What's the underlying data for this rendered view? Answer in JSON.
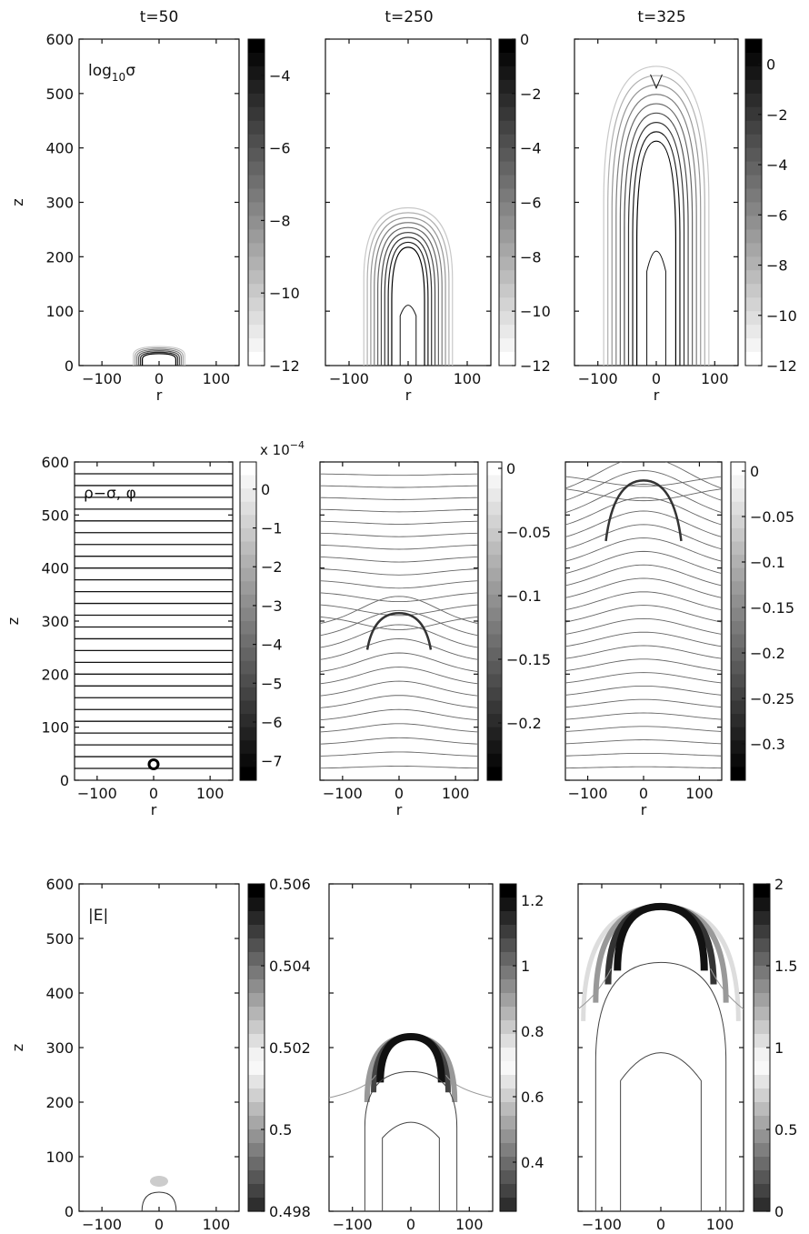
{
  "column_titles": [
    "t=50",
    "t=250",
    "t=325"
  ],
  "chart_data": [
    {
      "type": "heatmap",
      "row": 0,
      "col": 0,
      "title": "t=50",
      "annotation_label": "log",
      "annotation_sub": "10",
      "annotation_sym": "σ",
      "xlabel": "r",
      "ylabel": "z",
      "xlim": [
        -140,
        140
      ],
      "ylim": [
        0,
        600
      ],
      "xticks": [
        "-100",
        "0",
        "100"
      ],
      "yticks": [
        "0",
        "100",
        "200",
        "300",
        "400",
        "500",
        "600"
      ],
      "colorbar": {
        "range": [
          -12,
          -3
        ],
        "ticks": [
          "-4",
          "-6",
          "-8",
          "-10",
          "-12"
        ],
        "direction": "dark-high",
        "exponent": ""
      },
      "structure": {
        "front_height": 35,
        "front_halfwidth": 45
      }
    },
    {
      "type": "heatmap",
      "row": 0,
      "col": 1,
      "title": "t=250",
      "xlabel": "r",
      "ylabel": "",
      "xlim": [
        -140,
        140
      ],
      "ylim": [
        0,
        600
      ],
      "xticks": [
        "-100",
        "0",
        "100"
      ],
      "yticks": [],
      "colorbar": {
        "range": [
          -12,
          0
        ],
        "ticks": [
          "0",
          "-2",
          "-4",
          "-6",
          "-8",
          "-10",
          "-12"
        ],
        "direction": "dark-high",
        "exponent": ""
      },
      "structure": {
        "front_height": 290,
        "front_halfwidth": 75
      }
    },
    {
      "type": "heatmap",
      "row": 0,
      "col": 2,
      "title": "t=325",
      "xlabel": "r",
      "ylabel": "",
      "xlim": [
        -140,
        140
      ],
      "ylim": [
        0,
        600
      ],
      "xticks": [
        "-100",
        "0",
        "100"
      ],
      "yticks": [],
      "colorbar": {
        "range": [
          -12,
          1
        ],
        "ticks": [
          "0",
          "-2",
          "-4",
          "-6",
          "-8",
          "-10",
          "-12"
        ],
        "direction": "dark-high",
        "exponent": ""
      },
      "structure": {
        "front_height": 550,
        "front_halfwidth": 90
      }
    },
    {
      "type": "heatmap",
      "row": 1,
      "col": 0,
      "annotation_label": "ρ−σ, φ",
      "xlabel": "r",
      "ylabel": "z",
      "xlim": [
        -140,
        140
      ],
      "ylim": [
        0,
        600
      ],
      "xticks": [
        "-100",
        "0",
        "100"
      ],
      "yticks": [
        "0",
        "100",
        "200",
        "300",
        "400",
        "500",
        "600"
      ],
      "colorbar": {
        "range": [
          -7.5,
          0.7
        ],
        "ticks": [
          "0",
          "-1",
          "-2",
          "-3",
          "-4",
          "-5",
          "-6",
          "-7"
        ],
        "direction": "light-high",
        "exponent": "x 10"
      },
      "structure": {
        "front_height": 30,
        "front_halfwidth": 10
      }
    },
    {
      "type": "heatmap",
      "row": 1,
      "col": 1,
      "xlabel": "r",
      "ylabel": "",
      "xlim": [
        -140,
        140
      ],
      "ylim": [
        0,
        600
      ],
      "xticks": [
        "-100",
        "0",
        "100"
      ],
      "yticks": [],
      "colorbar": {
        "range": [
          -0.245,
          0.005
        ],
        "ticks": [
          "0",
          "-0.05",
          "-0.1",
          "-0.15",
          "-0.2"
        ],
        "direction": "light-high",
        "exponent": ""
      },
      "structure": {
        "front_height": 300,
        "front_halfwidth": 75
      }
    },
    {
      "type": "heatmap",
      "row": 1,
      "col": 2,
      "xlabel": "r",
      "ylabel": "",
      "xlim": [
        -140,
        140
      ],
      "ylim": [
        0,
        600
      ],
      "xticks": [
        "-100",
        "0",
        "100"
      ],
      "yticks": [],
      "colorbar": {
        "range": [
          -0.34,
          0.01
        ],
        "ticks": [
          "0",
          "-0.05",
          "-0.1",
          "-0.15",
          "-0.2",
          "-0.25",
          "-0.3"
        ],
        "direction": "light-high",
        "exponent": ""
      },
      "structure": {
        "front_height": 550,
        "front_halfwidth": 90
      }
    },
    {
      "type": "heatmap",
      "row": 2,
      "col": 0,
      "annotation_label": "|E|",
      "xlabel": "r",
      "ylabel": "z",
      "xlim": [
        -140,
        140
      ],
      "ylim": [
        0,
        600
      ],
      "xticks": [
        "-100",
        "0",
        "100"
      ],
      "yticks": [
        "0",
        "100",
        "200",
        "300",
        "400",
        "500",
        "600"
      ],
      "colorbar": {
        "range": [
          0.498,
          0.506
        ],
        "ticks": [
          "0.506",
          "0.504",
          "0.502",
          "0.5",
          "0.498"
        ],
        "direction": "dark-extremes",
        "exponent": ""
      },
      "structure": {
        "front_height": 35,
        "front_halfwidth": 30
      }
    },
    {
      "type": "heatmap",
      "row": 2,
      "col": 1,
      "xlabel": "r",
      "ylabel": "",
      "xlim": [
        -140,
        140
      ],
      "ylim": [
        0,
        600
      ],
      "xticks": [
        "-100",
        "0",
        "100"
      ],
      "yticks": [],
      "colorbar": {
        "range": [
          0.25,
          1.25
        ],
        "ticks": [
          "1.2",
          "1",
          "0.8",
          "0.6",
          "0.4"
        ],
        "direction": "dark-extremes",
        "exponent": ""
      },
      "structure": {
        "front_height": 320,
        "front_halfwidth": 75
      }
    },
    {
      "type": "heatmap",
      "row": 2,
      "col": 2,
      "xlabel": "r",
      "ylabel": "",
      "xlim": [
        -140,
        140
      ],
      "ylim": [
        0,
        600
      ],
      "xticks": [
        "-100",
        "0",
        "100"
      ],
      "yticks": [],
      "colorbar": {
        "range": [
          0,
          2
        ],
        "ticks": [
          "2",
          "1.5",
          "1",
          "0.5",
          "0"
        ],
        "direction": "dark-extremes",
        "exponent": ""
      },
      "structure": {
        "front_height": 570,
        "front_halfwidth": 105
      }
    }
  ]
}
